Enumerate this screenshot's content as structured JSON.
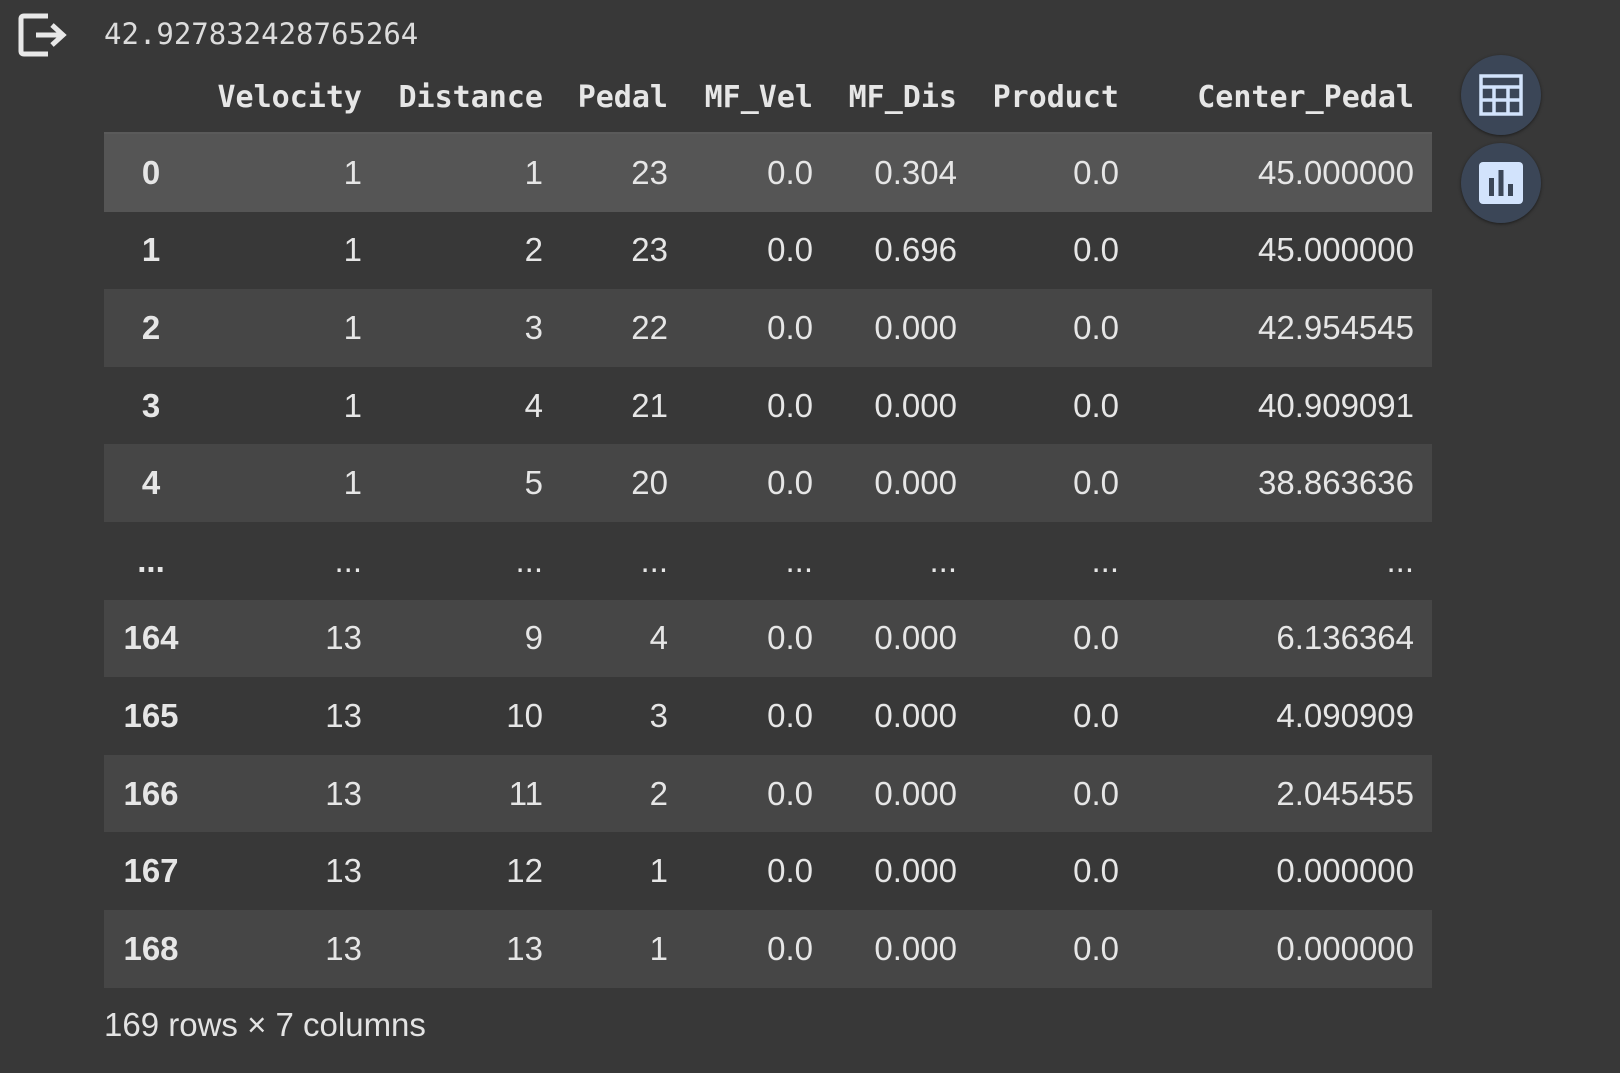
{
  "output": {
    "printed_value": "42.927832428765264",
    "icons": {
      "output": "output-redirect-icon",
      "table": "table-view-icon",
      "chart": "bar-chart-icon"
    }
  },
  "dataframe": {
    "columns": [
      "Velocity",
      "Distance",
      "Pedal",
      "MF_Vel",
      "MF_Dis",
      "Product",
      "Center_Pedal"
    ],
    "rows": [
      {
        "index": "0",
        "cells": [
          "1",
          "1",
          "23",
          "0.0",
          "0.304",
          "0.0",
          "45.000000"
        ]
      },
      {
        "index": "1",
        "cells": [
          "1",
          "2",
          "23",
          "0.0",
          "0.696",
          "0.0",
          "45.000000"
        ]
      },
      {
        "index": "2",
        "cells": [
          "1",
          "3",
          "22",
          "0.0",
          "0.000",
          "0.0",
          "42.954545"
        ]
      },
      {
        "index": "3",
        "cells": [
          "1",
          "4",
          "21",
          "0.0",
          "0.000",
          "0.0",
          "40.909091"
        ]
      },
      {
        "index": "4",
        "cells": [
          "1",
          "5",
          "20",
          "0.0",
          "0.000",
          "0.0",
          "38.863636"
        ]
      },
      {
        "index": "...",
        "cells": [
          "...",
          "...",
          "...",
          "...",
          "...",
          "...",
          "..."
        ]
      },
      {
        "index": "164",
        "cells": [
          "13",
          "9",
          "4",
          "0.0",
          "0.000",
          "0.0",
          "6.136364"
        ]
      },
      {
        "index": "165",
        "cells": [
          "13",
          "10",
          "3",
          "0.0",
          "0.000",
          "0.0",
          "4.090909"
        ]
      },
      {
        "index": "166",
        "cells": [
          "13",
          "11",
          "2",
          "0.0",
          "0.000",
          "0.0",
          "2.045455"
        ]
      },
      {
        "index": "167",
        "cells": [
          "13",
          "12",
          "1",
          "0.0",
          "0.000",
          "0.0",
          "0.000000"
        ]
      },
      {
        "index": "168",
        "cells": [
          "13",
          "13",
          "1",
          "0.0",
          "0.000",
          "0.0",
          "0.000000"
        ]
      }
    ],
    "shape": "169 rows × 7 columns"
  },
  "colors": {
    "background": "#383838",
    "row_odd": "#464646",
    "row_first": "#555555",
    "button_bg": "#3b4657",
    "icon": "#d2e3fc"
  }
}
